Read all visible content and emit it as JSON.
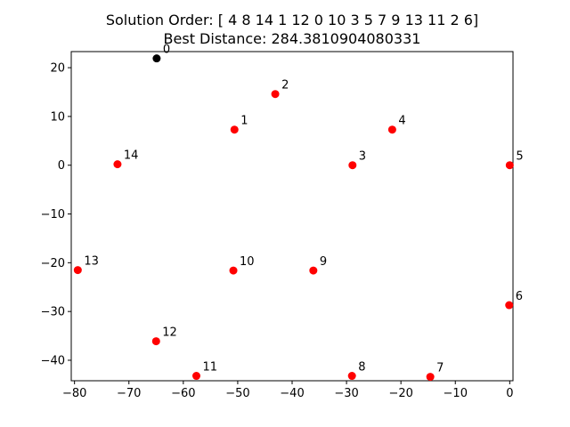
{
  "chart_data": {
    "type": "scatter",
    "title": "Solution Order: [ 4  8 14  1 12  0 10  3  5  7  9 13 11  2  6]",
    "subtitle": "Best Distance: 284.3810904080331",
    "xlabel": "",
    "ylabel": "",
    "xlim": [
      -80.6,
      0.6
    ],
    "ylim": [
      -44.2,
      23.3
    ],
    "xticks": [
      -80,
      -70,
      -60,
      -50,
      -40,
      -30,
      -20,
      -10,
      0
    ],
    "xtick_labels": [
      "−80",
      "−70",
      "−60",
      "−50",
      "−40",
      "−30",
      "−20",
      "−10",
      "0"
    ],
    "yticks": [
      -40,
      -30,
      -20,
      -10,
      0,
      10,
      20
    ],
    "ytick_labels": [
      "−40",
      "−30",
      "−20",
      "−10",
      "0",
      "10",
      "20"
    ],
    "grid": false,
    "legend": null,
    "points": [
      {
        "label": "0",
        "x": -64.9,
        "y": 21.9,
        "color": "#000000"
      },
      {
        "label": "1",
        "x": -50.6,
        "y": 7.3,
        "color": "#ff0000"
      },
      {
        "label": "2",
        "x": -43.1,
        "y": 14.6,
        "color": "#ff0000"
      },
      {
        "label": "3",
        "x": -28.9,
        "y": 0.0,
        "color": "#ff0000"
      },
      {
        "label": "4",
        "x": -21.6,
        "y": 7.3,
        "color": "#ff0000"
      },
      {
        "label": "5",
        "x": 0.0,
        "y": 0.0,
        "color": "#ff0000"
      },
      {
        "label": "6",
        "x": -0.1,
        "y": -28.7,
        "color": "#ff0000"
      },
      {
        "label": "7",
        "x": -14.6,
        "y": -43.4,
        "color": "#ff0000"
      },
      {
        "label": "8",
        "x": -29.0,
        "y": -43.2,
        "color": "#ff0000"
      },
      {
        "label": "9",
        "x": -36.1,
        "y": -21.6,
        "color": "#ff0000"
      },
      {
        "label": "10",
        "x": -50.8,
        "y": -21.6,
        "color": "#ff0000"
      },
      {
        "label": "11",
        "x": -57.6,
        "y": -43.2,
        "color": "#ff0000"
      },
      {
        "label": "12",
        "x": -65.0,
        "y": -36.1,
        "color": "#ff0000"
      },
      {
        "label": "13",
        "x": -79.4,
        "y": -21.5,
        "color": "#ff0000"
      },
      {
        "label": "14",
        "x": -72.1,
        "y": 0.2,
        "color": "#ff0000"
      }
    ]
  }
}
